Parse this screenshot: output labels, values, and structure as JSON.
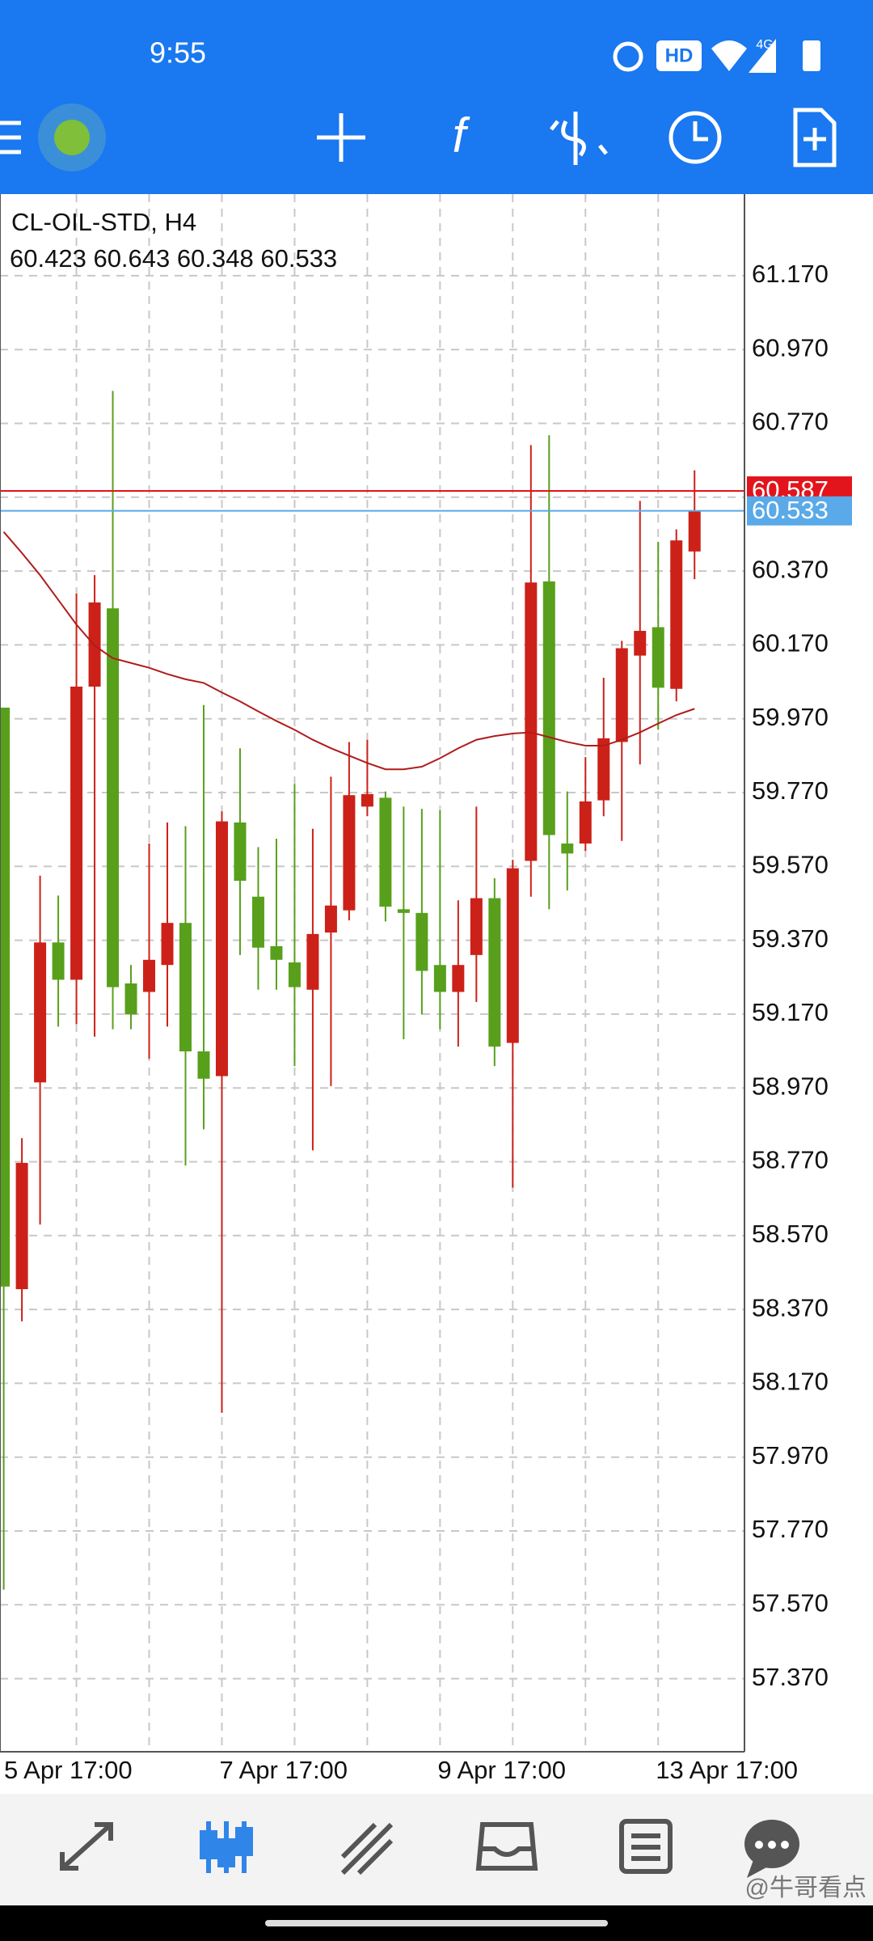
{
  "status_bar": {
    "time": "9:55",
    "hd": "HD",
    "network": "4G"
  },
  "watermark": "@牛哥看点",
  "chart_data": {
    "type": "candlestick",
    "title": "CL-OIL-STD, H4",
    "categories": [
      "5 Apr 17:00",
      null,
      null,
      null,
      null,
      null,
      null,
      null,
      null,
      null,
      null,
      null,
      "7 Apr 17:00",
      null,
      null,
      null,
      null,
      null,
      null,
      null,
      null,
      null,
      null,
      null,
      "9 Apr 17:00",
      null,
      null,
      null,
      null,
      null,
      null,
      null,
      null,
      null,
      null,
      null,
      "13 Apr 17:00",
      null,
      null
    ],
    "open": [
      60.0,
      58.425,
      58.985,
      59.364,
      59.263,
      60.057,
      60.269,
      59.253,
      59.23,
      59.303,
      59.417,
      59.069,
      59.002,
      59.689,
      59.488,
      59.354,
      59.31,
      59.236,
      59.391,
      59.451,
      59.732,
      59.756,
      59.454,
      59.444,
      59.303,
      59.23,
      59.33,
      59.484,
      59.092,
      59.585,
      60.342,
      59.632,
      59.632,
      59.749,
      59.907,
      60.141,
      60.218,
      60.051,
      60.423
    ],
    "high": [
      60.0,
      58.834,
      59.545,
      59.491,
      60.309,
      60.359,
      60.858,
      59.303,
      59.632,
      59.689,
      59.679,
      60.007,
      59.719,
      59.89,
      59.622,
      59.645,
      59.793,
      59.672,
      59.813,
      59.907,
      59.913,
      59.773,
      59.732,
      59.726,
      59.722,
      59.478,
      59.732,
      59.538,
      59.588,
      60.711,
      60.738,
      59.773,
      59.866,
      60.081,
      60.181,
      60.56,
      60.449,
      60.483,
      60.643
    ],
    "low": [
      57.611,
      58.338,
      58.6,
      59.136,
      59.143,
      59.109,
      59.129,
      59.129,
      59.049,
      59.136,
      58.76,
      58.858,
      58.09,
      59.33,
      59.236,
      59.236,
      59.029,
      58.801,
      58.975,
      59.424,
      59.706,
      59.421,
      59.102,
      59.169,
      59.129,
      59.082,
      59.203,
      59.029,
      58.7,
      59.488,
      59.454,
      59.505,
      59.612,
      59.706,
      59.639,
      59.846,
      59.94,
      60.017,
      60.348
    ],
    "close": [
      58.432,
      58.767,
      59.364,
      59.263,
      60.057,
      60.285,
      59.243,
      59.169,
      59.317,
      59.417,
      59.069,
      58.995,
      59.692,
      59.531,
      59.35,
      59.317,
      59.243,
      59.387,
      59.464,
      59.763,
      59.766,
      59.461,
      59.444,
      59.287,
      59.23,
      59.303,
      59.484,
      59.082,
      59.565,
      60.339,
      59.655,
      59.605,
      59.746,
      59.917,
      60.161,
      60.208,
      60.054,
      60.453,
      60.533
    ],
    "up_color": "#cc2118",
    "down_color": "#58a01c",
    "ma": {
      "color": "#b01c1c",
      "values": [
        60.476,
        60.419,
        60.359,
        60.292,
        60.225,
        60.168,
        60.134,
        60.121,
        60.108,
        60.091,
        60.077,
        60.067,
        60.041,
        60.017,
        59.99,
        59.964,
        59.94,
        59.913,
        59.89,
        59.87,
        59.85,
        59.833,
        59.833,
        59.84,
        59.863,
        59.89,
        59.913,
        59.923,
        59.93,
        59.933,
        59.92,
        59.907,
        59.897,
        59.897,
        59.913,
        59.933,
        59.957,
        59.98,
        59.997
      ]
    },
    "price_lines": [
      {
        "value": 60.587,
        "color": "#e3141b"
      },
      {
        "value": 60.533,
        "color": "#5aa9e8"
      }
    ],
    "ylim": [
      57.172,
      61.391
    ],
    "yticks": [
      {
        "value": 61.17,
        "label": "61.170"
      },
      {
        "value": 60.97,
        "label": "60.970"
      },
      {
        "value": 60.77,
        "label": "60.770"
      },
      {
        "value": 60.57,
        "label": "60.570"
      },
      {
        "value": 60.37,
        "label": "60.370"
      },
      {
        "value": 60.17,
        "label": "60.170"
      },
      {
        "value": 59.97,
        "label": "59.970"
      },
      {
        "value": 59.77,
        "label": "59.770"
      },
      {
        "value": 59.57,
        "label": "59.570"
      },
      {
        "value": 59.37,
        "label": "59.370"
      },
      {
        "value": 59.17,
        "label": "59.170"
      },
      {
        "value": 58.97,
        "label": "58.970"
      },
      {
        "value": 58.77,
        "label": "58.770"
      },
      {
        "value": 58.57,
        "label": "58.570"
      },
      {
        "value": 58.37,
        "label": "58.370"
      },
      {
        "value": 58.17,
        "label": "58.170"
      },
      {
        "value": 57.97,
        "label": "57.970"
      },
      {
        "value": 57.77,
        "label": "57.770"
      },
      {
        "value": 57.57,
        "label": "57.570"
      },
      {
        "value": 57.37,
        "label": "57.370"
      }
    ],
    "grid": true
  }
}
